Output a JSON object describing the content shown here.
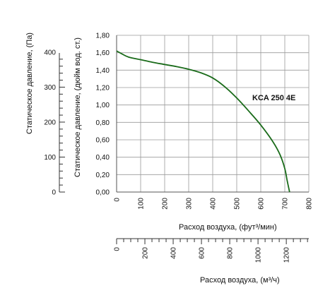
{
  "chart_data": {
    "type": "line",
    "series": [
      {
        "name": "KCA 250 4E",
        "color": "#1a6b1a",
        "x": [
          0,
          20,
          50,
          100,
          150,
          200,
          250,
          300,
          350,
          400,
          450,
          500,
          550,
          600,
          650,
          680,
          700,
          710,
          720
        ],
        "y": [
          1.62,
          1.59,
          1.55,
          1.52,
          1.49,
          1.465,
          1.44,
          1.41,
          1.37,
          1.31,
          1.21,
          1.08,
          0.93,
          0.77,
          0.58,
          0.43,
          0.27,
          0.13,
          0.0
        ]
      }
    ],
    "x_axis_top": {
      "label": "Расход воздуха, (фут³/мин)",
      "range": [
        0,
        800
      ],
      "ticks": [
        "0",
        "100",
        "200",
        "300",
        "400",
        "500",
        "600",
        "700",
        "800"
      ]
    },
    "x_axis_bottom": {
      "label": "Расход воздуха, (м³/ч)",
      "range": [
        0,
        1359.2
      ],
      "ticks": [
        "0",
        "200",
        "400",
        "600",
        "800",
        "1000",
        "1200"
      ]
    },
    "y_axis_right_inner": {
      "label": "Статическое давление, (дюйм вод. ст.)",
      "range": [
        0,
        1.8
      ],
      "ticks": [
        "0,00",
        "0,20",
        "0,40",
        "0,60",
        "0,80",
        "1,00",
        "1,20",
        "1,40",
        "1,60",
        "1,80"
      ]
    },
    "y_axis_left_outer": {
      "label": "Статическое давление, (Па)",
      "range": [
        0,
        448.3
      ],
      "ticks": [
        "0",
        "100",
        "200",
        "300",
        "400"
      ]
    },
    "grid": true,
    "annotation": "KCA 250 4E"
  }
}
